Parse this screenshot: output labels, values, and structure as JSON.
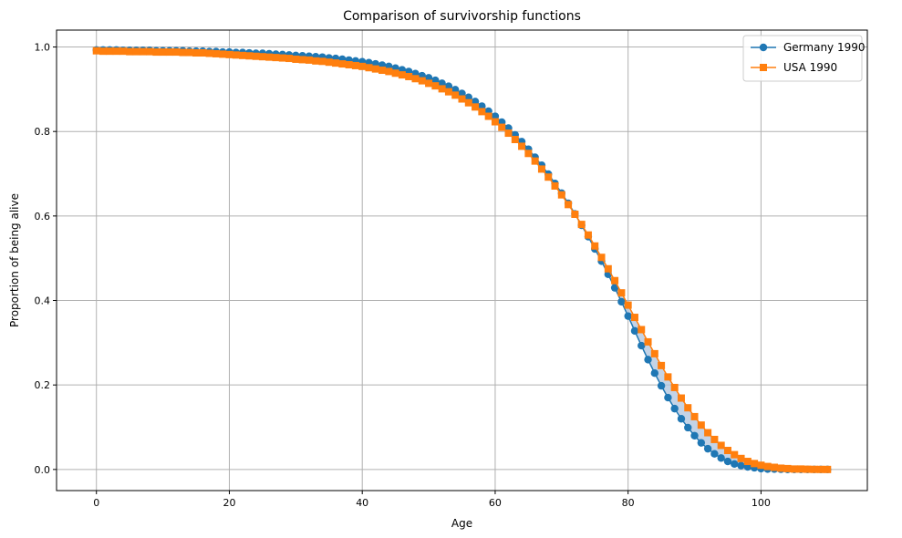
{
  "chart_data": {
    "type": "line",
    "title": "Comparison of survivorship functions",
    "xlabel": "Age",
    "ylabel": "Proportion of being alive",
    "xlim": [
      -6,
      116
    ],
    "ylim": [
      -0.05,
      1.04
    ],
    "xticks": [
      0,
      20,
      40,
      60,
      80,
      100
    ],
    "yticks": [
      0.0,
      0.2,
      0.4,
      0.6,
      0.8,
      1.0
    ],
    "grid": true,
    "legend_position": "top-right",
    "fill_between": true,
    "fill_color": "#b0c4de",
    "series": [
      {
        "name": "Germany 1990",
        "color": "#1f77b4",
        "marker": "circle",
        "x": [
          0,
          1,
          2,
          3,
          4,
          5,
          6,
          7,
          8,
          9,
          10,
          11,
          12,
          13,
          14,
          15,
          16,
          17,
          18,
          19,
          20,
          21,
          22,
          23,
          24,
          25,
          26,
          27,
          28,
          29,
          30,
          31,
          32,
          33,
          34,
          35,
          36,
          37,
          38,
          39,
          40,
          41,
          42,
          43,
          44,
          45,
          46,
          47,
          48,
          49,
          50,
          51,
          52,
          53,
          54,
          55,
          56,
          57,
          58,
          59,
          60,
          61,
          62,
          63,
          64,
          65,
          66,
          67,
          68,
          69,
          70,
          71,
          72,
          73,
          74,
          75,
          76,
          77,
          78,
          79,
          80,
          81,
          82,
          83,
          84,
          85,
          86,
          87,
          88,
          89,
          90,
          91,
          92,
          93,
          94,
          95,
          96,
          97,
          98,
          99,
          100,
          101,
          102,
          103,
          104,
          105,
          106,
          107,
          108,
          109,
          110
        ],
        "y": [
          0.993,
          0.993,
          0.993,
          0.993,
          0.992,
          0.992,
          0.992,
          0.992,
          0.992,
          0.991,
          0.991,
          0.991,
          0.991,
          0.991,
          0.99,
          0.99,
          0.99,
          0.989,
          0.989,
          0.988,
          0.988,
          0.987,
          0.987,
          0.986,
          0.985,
          0.985,
          0.984,
          0.983,
          0.982,
          0.981,
          0.98,
          0.979,
          0.978,
          0.977,
          0.976,
          0.974,
          0.973,
          0.971,
          0.969,
          0.967,
          0.965,
          0.963,
          0.96,
          0.957,
          0.954,
          0.95,
          0.946,
          0.942,
          0.937,
          0.932,
          0.927,
          0.921,
          0.914,
          0.907,
          0.899,
          0.89,
          0.881,
          0.871,
          0.86,
          0.848,
          0.836,
          0.822,
          0.808,
          0.792,
          0.776,
          0.758,
          0.739,
          0.72,
          0.699,
          0.677,
          0.654,
          0.63,
          0.605,
          0.578,
          0.551,
          0.522,
          0.493,
          0.462,
          0.43,
          0.397,
          0.363,
          0.328,
          0.293,
          0.26,
          0.228,
          0.198,
          0.17,
          0.144,
          0.12,
          0.099,
          0.08,
          0.063,
          0.049,
          0.037,
          0.027,
          0.019,
          0.013,
          0.009,
          0.006,
          0.004,
          0.002,
          0.001,
          0.001,
          0.0005,
          0.0002,
          0.0001,
          0.0,
          0.0,
          0.0,
          0.0,
          0.0
        ]
      },
      {
        "name": "USA 1990",
        "color": "#ff7f0e",
        "marker": "square",
        "x": [
          0,
          1,
          2,
          3,
          4,
          5,
          6,
          7,
          8,
          9,
          10,
          11,
          12,
          13,
          14,
          15,
          16,
          17,
          18,
          19,
          20,
          21,
          22,
          23,
          24,
          25,
          26,
          27,
          28,
          29,
          30,
          31,
          32,
          33,
          34,
          35,
          36,
          37,
          38,
          39,
          40,
          41,
          42,
          43,
          44,
          45,
          46,
          47,
          48,
          49,
          50,
          51,
          52,
          53,
          54,
          55,
          56,
          57,
          58,
          59,
          60,
          61,
          62,
          63,
          64,
          65,
          66,
          67,
          68,
          69,
          70,
          71,
          72,
          73,
          74,
          75,
          76,
          77,
          78,
          79,
          80,
          81,
          82,
          83,
          84,
          85,
          86,
          87,
          88,
          89,
          90,
          91,
          92,
          93,
          94,
          95,
          96,
          97,
          98,
          99,
          100,
          101,
          102,
          103,
          104,
          105,
          106,
          107,
          108,
          109,
          110
        ],
        "y": [
          0.991,
          0.99,
          0.99,
          0.99,
          0.99,
          0.989,
          0.989,
          0.989,
          0.989,
          0.988,
          0.988,
          0.988,
          0.988,
          0.987,
          0.987,
          0.986,
          0.986,
          0.985,
          0.984,
          0.983,
          0.982,
          0.981,
          0.98,
          0.979,
          0.978,
          0.977,
          0.976,
          0.975,
          0.974,
          0.973,
          0.971,
          0.97,
          0.969,
          0.967,
          0.966,
          0.964,
          0.962,
          0.96,
          0.958,
          0.956,
          0.954,
          0.951,
          0.948,
          0.945,
          0.942,
          0.938,
          0.934,
          0.93,
          0.925,
          0.92,
          0.914,
          0.908,
          0.901,
          0.894,
          0.886,
          0.877,
          0.868,
          0.858,
          0.847,
          0.836,
          0.823,
          0.81,
          0.796,
          0.781,
          0.765,
          0.748,
          0.73,
          0.711,
          0.692,
          0.671,
          0.65,
          0.627,
          0.604,
          0.58,
          0.555,
          0.529,
          0.502,
          0.475,
          0.447,
          0.418,
          0.389,
          0.36,
          0.331,
          0.302,
          0.274,
          0.246,
          0.219,
          0.194,
          0.169,
          0.146,
          0.125,
          0.105,
          0.087,
          0.071,
          0.057,
          0.045,
          0.035,
          0.026,
          0.019,
          0.014,
          0.01,
          0.007,
          0.005,
          0.003,
          0.002,
          0.001,
          0.001,
          0.0005,
          0.0002,
          0.0001,
          0.0
        ]
      }
    ]
  }
}
